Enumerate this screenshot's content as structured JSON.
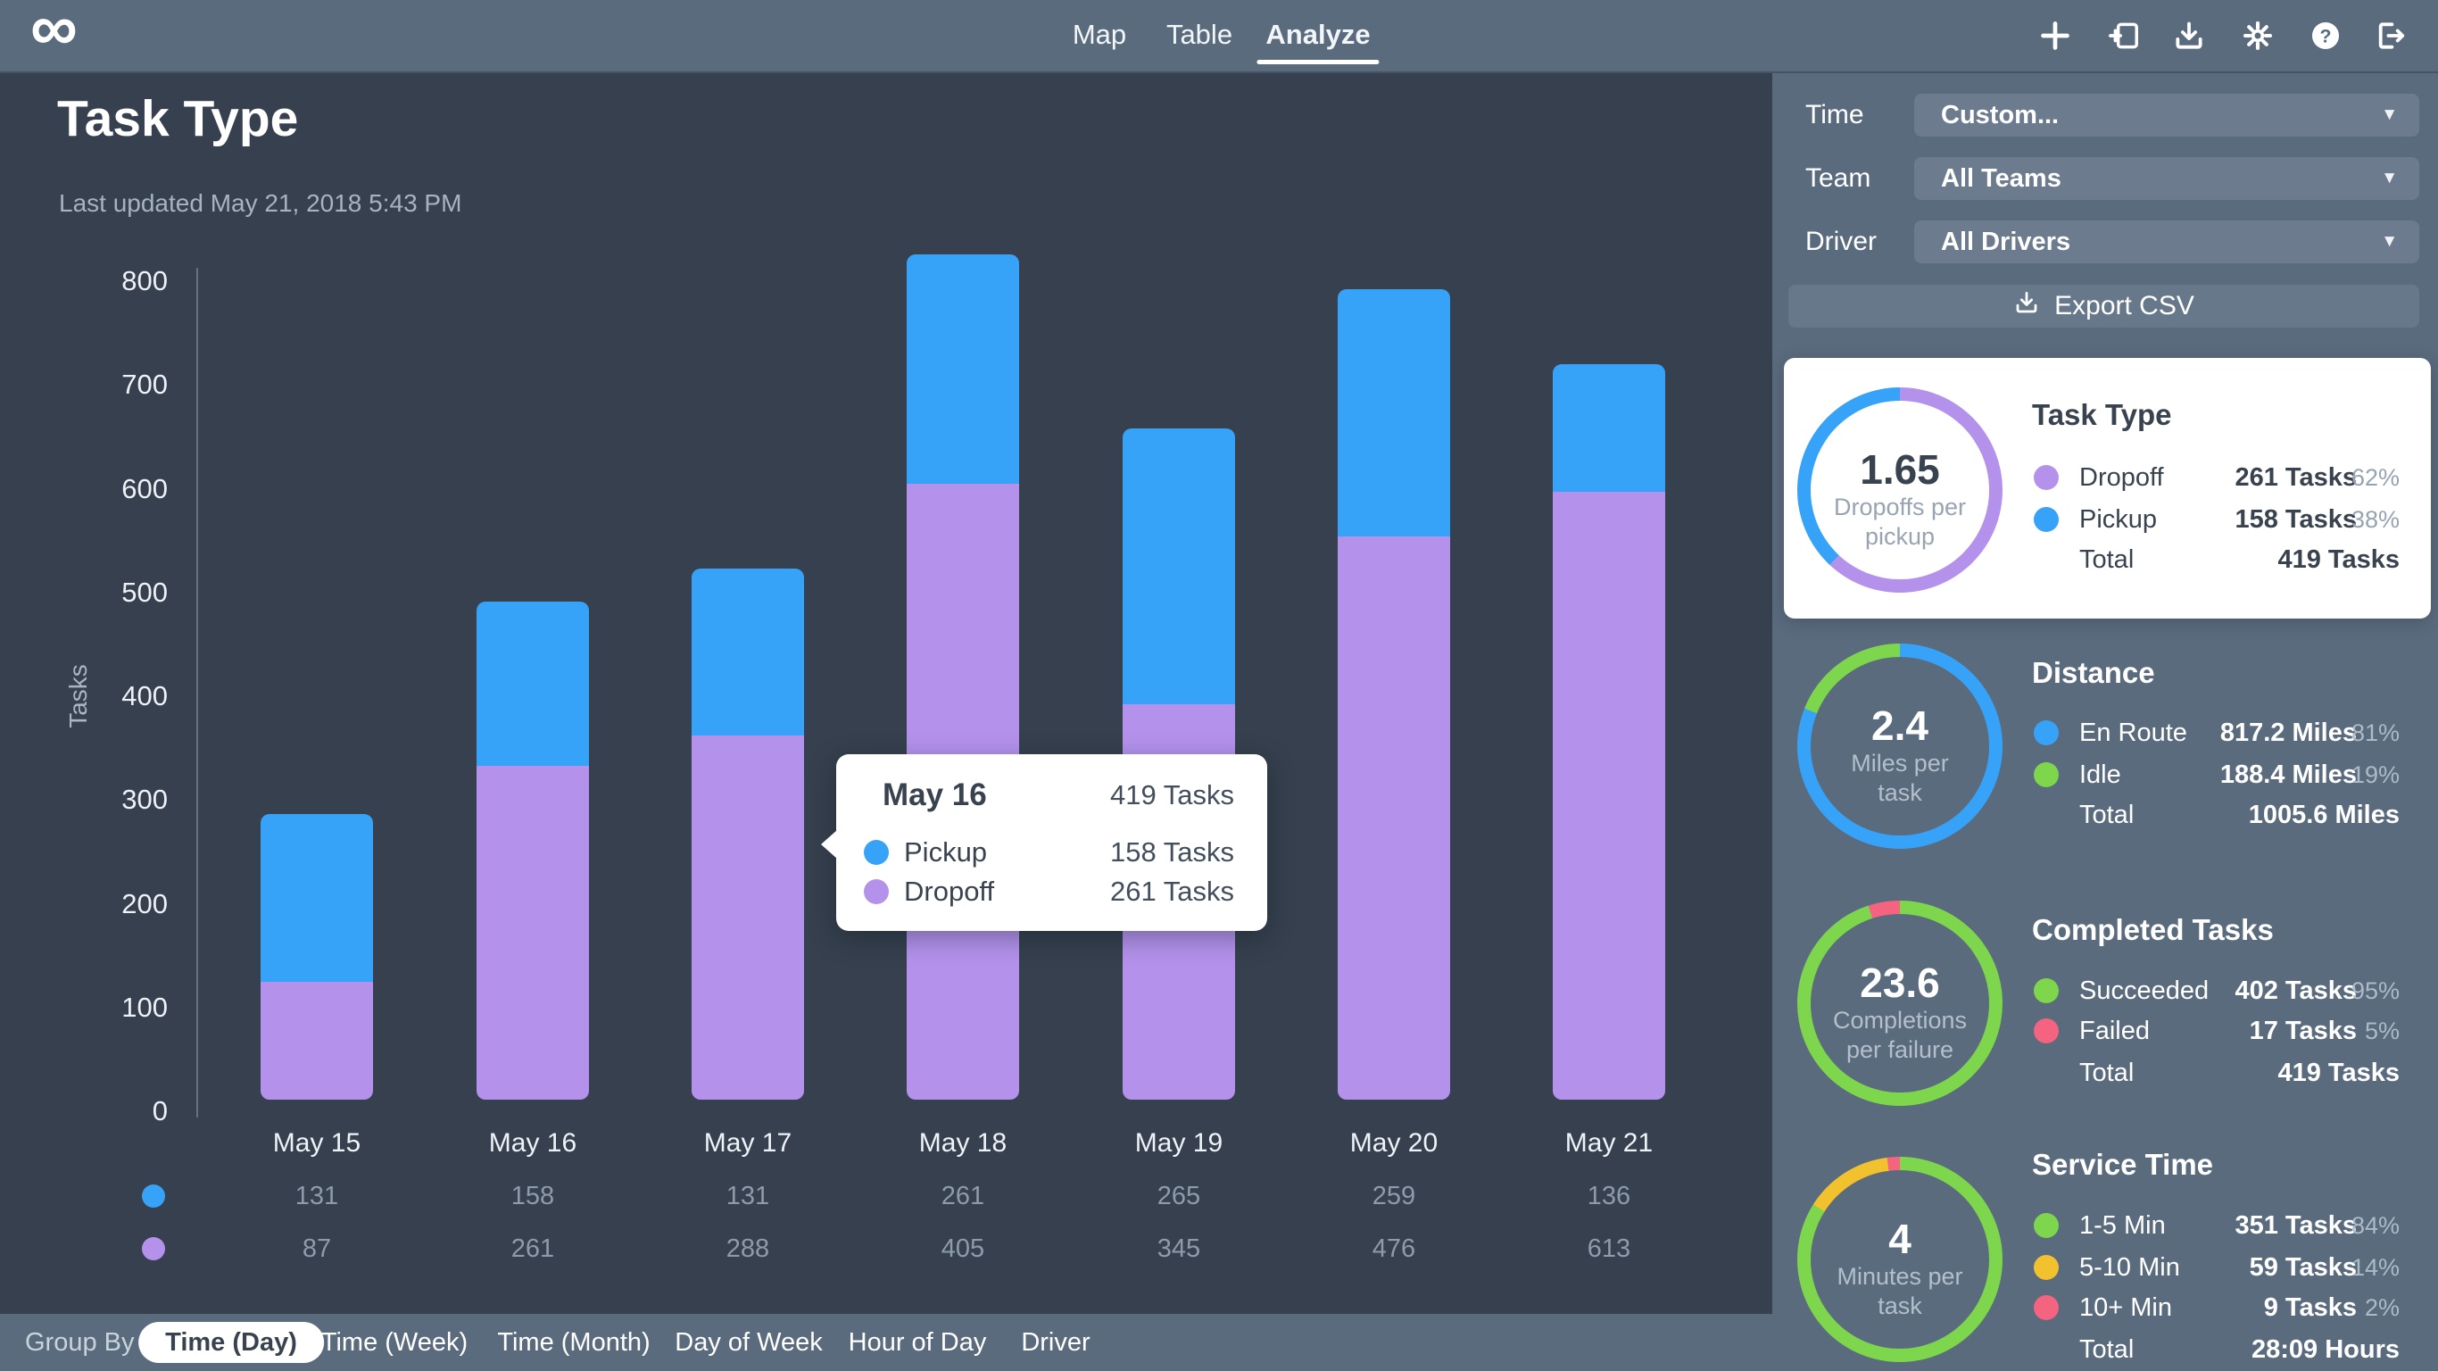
{
  "app": {
    "logo": "∞",
    "nav": [
      {
        "label": "Map",
        "active": false
      },
      {
        "label": "Table",
        "active": false
      },
      {
        "label": "Analyze",
        "active": true
      }
    ],
    "toolbar_icons": [
      "add",
      "import",
      "download",
      "settings",
      "help",
      "logout"
    ]
  },
  "header": {
    "title": "Task Type",
    "subtitle": "Last updated May 21, 2018 5:43 PM"
  },
  "chart_data": {
    "type": "bar",
    "stacked": true,
    "title": "Task Type",
    "ylabel": "Tasks",
    "ylim": [
      0,
      800
    ],
    "yticks": [
      800,
      700,
      600,
      500,
      400,
      300,
      200,
      100,
      0
    ],
    "grid": false,
    "legend_position": "bottom-left-dots",
    "categories": [
      "May 15",
      "May 16",
      "May 17",
      "May 18",
      "May 19",
      "May 20",
      "May 21"
    ],
    "series": [
      {
        "name": "Pickup",
        "color": "#36a3f8",
        "values": [
          131,
          158,
          131,
          261,
          265,
          259,
          136
        ]
      },
      {
        "name": "Dropoff",
        "color": "#b492ec",
        "values": [
          87,
          261,
          288,
          405,
          345,
          476,
          613
        ]
      }
    ],
    "bar_segments_as_rendered": {
      "note": "stack heights read off the y-axis",
      "pickup": [
        163,
        160,
        162,
        223,
        268,
        241,
        124
      ],
      "dropoff": [
        115,
        325,
        355,
        600,
        385,
        548,
        592
      ]
    }
  },
  "tooltip": {
    "title": "May 16",
    "total": "419 Tasks",
    "rows": [
      {
        "label": "Pickup",
        "value": "158 Tasks",
        "color": "#36a3f8"
      },
      {
        "label": "Dropoff",
        "value": "261 Tasks",
        "color": "#b492ec"
      }
    ]
  },
  "sidebar": {
    "filters": [
      {
        "label": "Time",
        "value": "Custom..."
      },
      {
        "label": "Team",
        "value": "All Teams"
      },
      {
        "label": "Driver",
        "value": "All Drivers"
      }
    ],
    "export_label": "Export CSV",
    "cards": [
      {
        "title": "Task Type",
        "highlighted": true,
        "ring": {
          "value": "1.65",
          "caption": [
            "Dropoffs per",
            "pickup"
          ],
          "segments": [
            {
              "color": "#b492ec",
              "pct": 62
            },
            {
              "color": "#36a3f8",
              "pct": 38
            }
          ]
        },
        "rows": [
          {
            "label": "Dropoff",
            "value": "261 Tasks",
            "pct": "62%",
            "color": "#b492ec"
          },
          {
            "label": "Pickup",
            "value": "158 Tasks",
            "pct": "38%",
            "color": "#36a3f8"
          }
        ],
        "total": {
          "label": "Total",
          "value": "419 Tasks"
        }
      },
      {
        "title": "Distance",
        "highlighted": false,
        "ring": {
          "value": "2.4",
          "caption": [
            "Miles per",
            "task"
          ],
          "segments": [
            {
              "color": "#36a3f8",
              "pct": 81
            },
            {
              "color": "#7ed64c",
              "pct": 19
            }
          ]
        },
        "rows": [
          {
            "label": "En Route",
            "value": "817.2 Miles",
            "pct": "81%",
            "color": "#36a3f8"
          },
          {
            "label": "Idle",
            "value": "188.4 Miles",
            "pct": "19%",
            "color": "#7ed64c"
          }
        ],
        "total": {
          "label": "Total",
          "value": "1005.6 Miles"
        }
      },
      {
        "title": "Completed Tasks",
        "highlighted": false,
        "ring": {
          "value": "23.6",
          "caption": [
            "Completions",
            "per failure"
          ],
          "segments": [
            {
              "color": "#7ed64c",
              "pct": 95
            },
            {
              "color": "#f4637f",
              "pct": 5
            }
          ]
        },
        "rows": [
          {
            "label": "Succeeded",
            "value": "402 Tasks",
            "pct": "95%",
            "color": "#7ed64c"
          },
          {
            "label": "Failed",
            "value": "17 Tasks",
            "pct": "5%",
            "color": "#f4637f"
          }
        ],
        "total": {
          "label": "Total",
          "value": "419 Tasks"
        }
      },
      {
        "title": "Service Time",
        "highlighted": false,
        "ring": {
          "value": "4",
          "caption": [
            "Minutes per",
            "task"
          ],
          "segments": [
            {
              "color": "#7ed64c",
              "pct": 84
            },
            {
              "color": "#f1c12e",
              "pct": 14
            },
            {
              "color": "#f4637f",
              "pct": 2
            }
          ]
        },
        "rows": [
          {
            "label": "1-5 Min",
            "value": "351 Tasks",
            "pct": "84%",
            "color": "#7ed64c"
          },
          {
            "label": "5-10 Min",
            "value": "59 Tasks",
            "pct": "14%",
            "color": "#f1c12e"
          },
          {
            "label": "10+ Min",
            "value": "9 Tasks",
            "pct": "2%",
            "color": "#f4637f"
          }
        ],
        "total": {
          "label": "Total",
          "value": "28:09 Hours"
        }
      }
    ]
  },
  "bottom": {
    "group_by_label": "Group By",
    "options": [
      {
        "label": "Time (Day)",
        "active": true
      },
      {
        "label": "Time (Week)",
        "active": false
      },
      {
        "label": "Time (Month)",
        "active": false
      },
      {
        "label": "Day of Week",
        "active": false
      },
      {
        "label": "Hour of Day",
        "active": false
      },
      {
        "label": "Driver",
        "active": false
      }
    ]
  },
  "theme": {
    "topbar_bg": "#5b6b7e",
    "main_bg": "#36404e",
    "sidebar_bg": "#5b6b7e",
    "card_bg": "#ffffff",
    "blue": "#36a3f8",
    "purple": "#b492ec",
    "green": "#7ed64c",
    "pink": "#f4637f",
    "yellow": "#f1c12e"
  }
}
